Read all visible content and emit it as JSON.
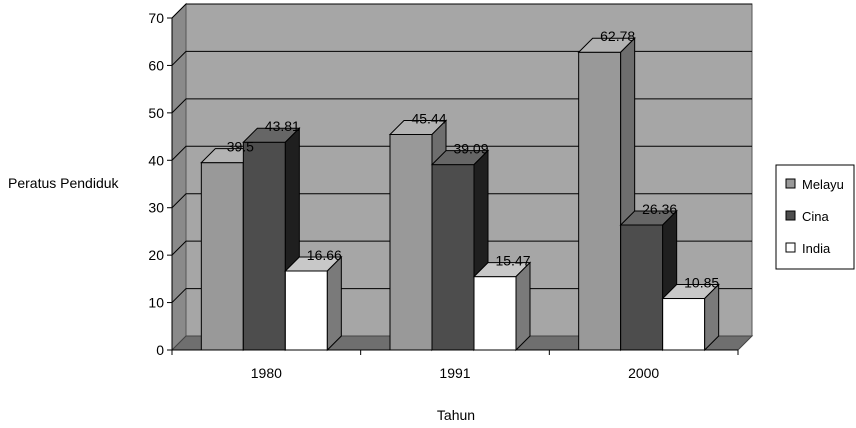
{
  "chart_data": {
    "type": "bar",
    "title": "",
    "xlabel": "Tahun",
    "ylabel": "Peratus Pendiduk",
    "categories": [
      "1980",
      "1991",
      "2000"
    ],
    "ylim": [
      0,
      70
    ],
    "yticks": [
      "0",
      "10",
      "20",
      "30",
      "40",
      "50",
      "60",
      "70"
    ],
    "grid": true,
    "legend_position": "right",
    "series": [
      {
        "name": "Melayu",
        "values": [
          39.5,
          45.44,
          62.78
        ],
        "labels": [
          "39.5",
          "45.44",
          "62.78"
        ],
        "color": "#999999"
      },
      {
        "name": "Cina",
        "values": [
          43.81,
          39.09,
          26.36
        ],
        "labels": [
          "43.81",
          "39.09",
          "26.36"
        ],
        "color": "#4d4d4d"
      },
      {
        "name": "India",
        "values": [
          16.66,
          15.47,
          10.85
        ],
        "labels": [
          "16.66",
          "15.47",
          "10.85"
        ],
        "color": "#ffffff"
      }
    ],
    "colors": {
      "wall": "#a6a6a6",
      "floor": "#6f6f6f"
    }
  }
}
